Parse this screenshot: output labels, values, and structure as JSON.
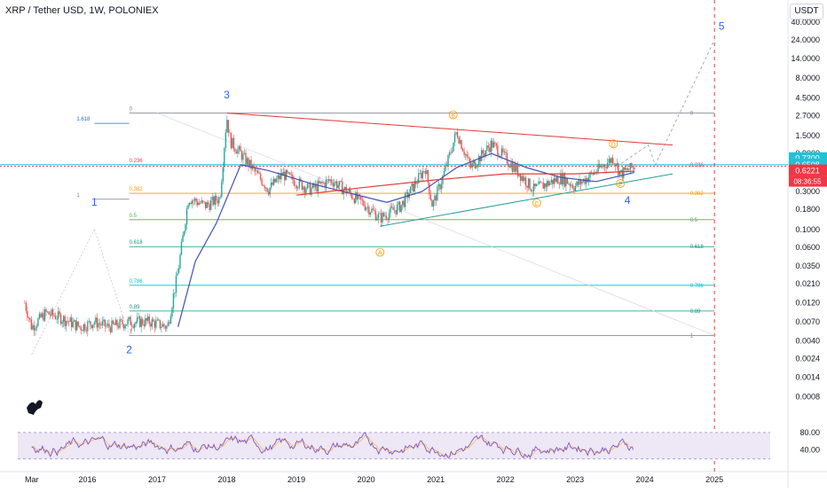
{
  "header": {
    "symbol_title": "XRP / Tether USD, 1W, POLONIEX",
    "currency_button": "USDT"
  },
  "price_badges": {
    "cyan_top": "0.7300",
    "cyan": "0.6508",
    "current": "0.6221",
    "countdown": "08:36:55"
  },
  "colors": {
    "candle_up": "#26a69a",
    "candle_down": "#ef5350",
    "ema": "#3f51b5",
    "ma_red": "#e53935",
    "cyan": "#22c1d6",
    "current": "#f23645",
    "wave_label": "#2962ff",
    "abc_label": "#ff9800",
    "rsi_line": "#7e57c2",
    "rsi_band": "#ede7f6"
  },
  "chart_data": {
    "type": "candlestick",
    "title": "XRP / Tether USD, 1W, POLONIEX",
    "y_scale": "log",
    "ylim": [
      0.0006,
      40
    ],
    "y_ticks": [
      "40.0000",
      "24.0000",
      "14.0000",
      "8.0000",
      "4.5000",
      "2.7000",
      "1.5000",
      "0.9000",
      "0.5000",
      "0.3000",
      "0.1800",
      "0.1000",
      "0.0600",
      "0.0350",
      "0.0210",
      "0.0120",
      "0.0070",
      "0.0040",
      "0.0024",
      "0.0014",
      "0.0008"
    ],
    "x_ticks": [
      "Mar",
      "2016",
      "2017",
      "2018",
      "2019",
      "2020",
      "2021",
      "2022",
      "2023",
      "2024",
      "2025"
    ],
    "price_path": [
      {
        "t": 2015.1,
        "v": 0.012
      },
      {
        "t": 2015.2,
        "v": 0.006
      },
      {
        "t": 2015.4,
        "v": 0.009
      },
      {
        "t": 2015.6,
        "v": 0.008
      },
      {
        "t": 2015.9,
        "v": 0.006
      },
      {
        "t": 2016.1,
        "v": 0.007
      },
      {
        "t": 2016.3,
        "v": 0.006
      },
      {
        "t": 2016.6,
        "v": 0.007
      },
      {
        "t": 2016.9,
        "v": 0.007
      },
      {
        "t": 2017.15,
        "v": 0.006
      },
      {
        "t": 2017.3,
        "v": 0.03
      },
      {
        "t": 2017.45,
        "v": 0.25
      },
      {
        "t": 2017.7,
        "v": 0.2
      },
      {
        "t": 2017.9,
        "v": 0.25
      },
      {
        "t": 2018.0,
        "v": 2.6
      },
      {
        "t": 2018.05,
        "v": 1.3
      },
      {
        "t": 2018.3,
        "v": 0.7
      },
      {
        "t": 2018.6,
        "v": 0.32
      },
      {
        "t": 2018.8,
        "v": 0.5
      },
      {
        "t": 2019.2,
        "v": 0.32
      },
      {
        "t": 2019.5,
        "v": 0.42
      },
      {
        "t": 2019.8,
        "v": 0.27
      },
      {
        "t": 2020.0,
        "v": 0.2
      },
      {
        "t": 2020.2,
        "v": 0.14
      },
      {
        "t": 2020.5,
        "v": 0.2
      },
      {
        "t": 2020.85,
        "v": 0.6
      },
      {
        "t": 2020.95,
        "v": 0.2
      },
      {
        "t": 2021.1,
        "v": 0.45
      },
      {
        "t": 2021.3,
        "v": 1.7
      },
      {
        "t": 2021.5,
        "v": 0.6
      },
      {
        "t": 2021.8,
        "v": 1.2
      },
      {
        "t": 2022.0,
        "v": 0.8
      },
      {
        "t": 2022.4,
        "v": 0.32
      },
      {
        "t": 2022.8,
        "v": 0.45
      },
      {
        "t": 2023.0,
        "v": 0.35
      },
      {
        "t": 2023.25,
        "v": 0.5
      },
      {
        "t": 2023.55,
        "v": 0.8
      },
      {
        "t": 2023.65,
        "v": 0.5
      },
      {
        "t": 2023.85,
        "v": 0.62
      }
    ],
    "ema_path": [
      {
        "t": 2017.3,
        "v": 0.006
      },
      {
        "t": 2017.55,
        "v": 0.04
      },
      {
        "t": 2017.85,
        "v": 0.12
      },
      {
        "t": 2018.2,
        "v": 0.65
      },
      {
        "t": 2018.6,
        "v": 0.55
      },
      {
        "t": 2019.2,
        "v": 0.38
      },
      {
        "t": 2019.8,
        "v": 0.28
      },
      {
        "t": 2020.3,
        "v": 0.22
      },
      {
        "t": 2020.8,
        "v": 0.3
      },
      {
        "t": 2021.3,
        "v": 0.6
      },
      {
        "t": 2021.8,
        "v": 0.9
      },
      {
        "t": 2022.3,
        "v": 0.6
      },
      {
        "t": 2022.8,
        "v": 0.45
      },
      {
        "t": 2023.3,
        "v": 0.4
      },
      {
        "t": 2023.85,
        "v": 0.52
      }
    ],
    "ma_path": [
      {
        "t": 2019.0,
        "v": 0.27
      },
      {
        "t": 2020.0,
        "v": 0.34
      },
      {
        "t": 2021.0,
        "v": 0.42
      },
      {
        "t": 2022.0,
        "v": 0.5
      },
      {
        "t": 2023.0,
        "v": 0.5
      },
      {
        "t": 2023.85,
        "v": 0.54
      }
    ],
    "fib_levels": [
      {
        "label": "0",
        "value": 2.9,
        "color": "#787b86",
        "x1": 2016.6,
        "x2": 2025.0
      },
      {
        "label": "0.236",
        "value": 0.65,
        "color": "#f23645",
        "x1": 2016.6,
        "x2": 2025.0
      },
      {
        "label": "0.382",
        "value": 0.285,
        "color": "#ff9800",
        "x1": 2016.6,
        "x2": 2025.0
      },
      {
        "label": "0.5",
        "value": 0.133,
        "color": "#4caf50",
        "x1": 2016.6,
        "x2": 2025.0
      },
      {
        "label": "0.618",
        "value": 0.061,
        "color": "#089981",
        "x1": 2016.6,
        "x2": 2025.0
      },
      {
        "label": "0.786",
        "value": 0.02,
        "color": "#00bcd4",
        "x1": 2016.6,
        "x2": 2025.0
      },
      {
        "label": "0.89",
        "value": 0.0095,
        "color": "#089981",
        "x1": 2016.6,
        "x2": 2025.0
      },
      {
        "label": "1",
        "value": 0.0047,
        "color": "#787b86",
        "x1": 2016.6,
        "x2": 2025.0
      }
    ],
    "ext_levels": [
      {
        "label": "1.618",
        "value": 2.15,
        "color": "#2962ff",
        "x1": 2016.1,
        "x2": 2016.6
      },
      {
        "label": "1",
        "value": 0.24,
        "color": "#787b86",
        "x1": 2016.1,
        "x2": 2016.6
      }
    ],
    "trendlines": [
      {
        "name": "upper",
        "color": "#e53935",
        "p1": {
          "t": 2018.0,
          "v": 2.9
        },
        "p2": {
          "t": 2024.4,
          "v": 1.15
        }
      },
      {
        "name": "lower",
        "color": "#22a09a",
        "p1": {
          "t": 2020.2,
          "v": 0.11
        },
        "p2": {
          "t": 2024.4,
          "v": 0.5
        }
      }
    ],
    "projection": [
      {
        "t": 2023.6,
        "v": 0.62
      },
      {
        "t": 2024.05,
        "v": 1.15
      },
      {
        "t": 2024.15,
        "v": 0.65
      },
      {
        "t": 2025.0,
        "v": 24
      }
    ],
    "wave_labels": [
      {
        "text": "1",
        "t": 2016.1,
        "v": 0.2
      },
      {
        "text": "2",
        "t": 2016.6,
        "v": 0.0028
      },
      {
        "text": "3",
        "t": 2018.0,
        "v": 4.4
      },
      {
        "text": "4",
        "t": 2023.75,
        "v": 0.21
      },
      {
        "text": "5",
        "t": 2025.1,
        "v": 32
      }
    ],
    "abc_labels": [
      {
        "text": "A",
        "t": 2020.2,
        "v": 0.048
      },
      {
        "text": "B",
        "t": 2021.25,
        "v": 2.55
      },
      {
        "text": "C",
        "t": 2022.45,
        "v": 0.2
      },
      {
        "text": "D",
        "t": 2023.55,
        "v": 1.1
      },
      {
        "text": "E",
        "t": 2023.65,
        "v": 0.35
      }
    ],
    "rsi": {
      "y_ticks": [
        "80.00",
        "40.00"
      ],
      "upper": 80,
      "lower": 20
    }
  }
}
